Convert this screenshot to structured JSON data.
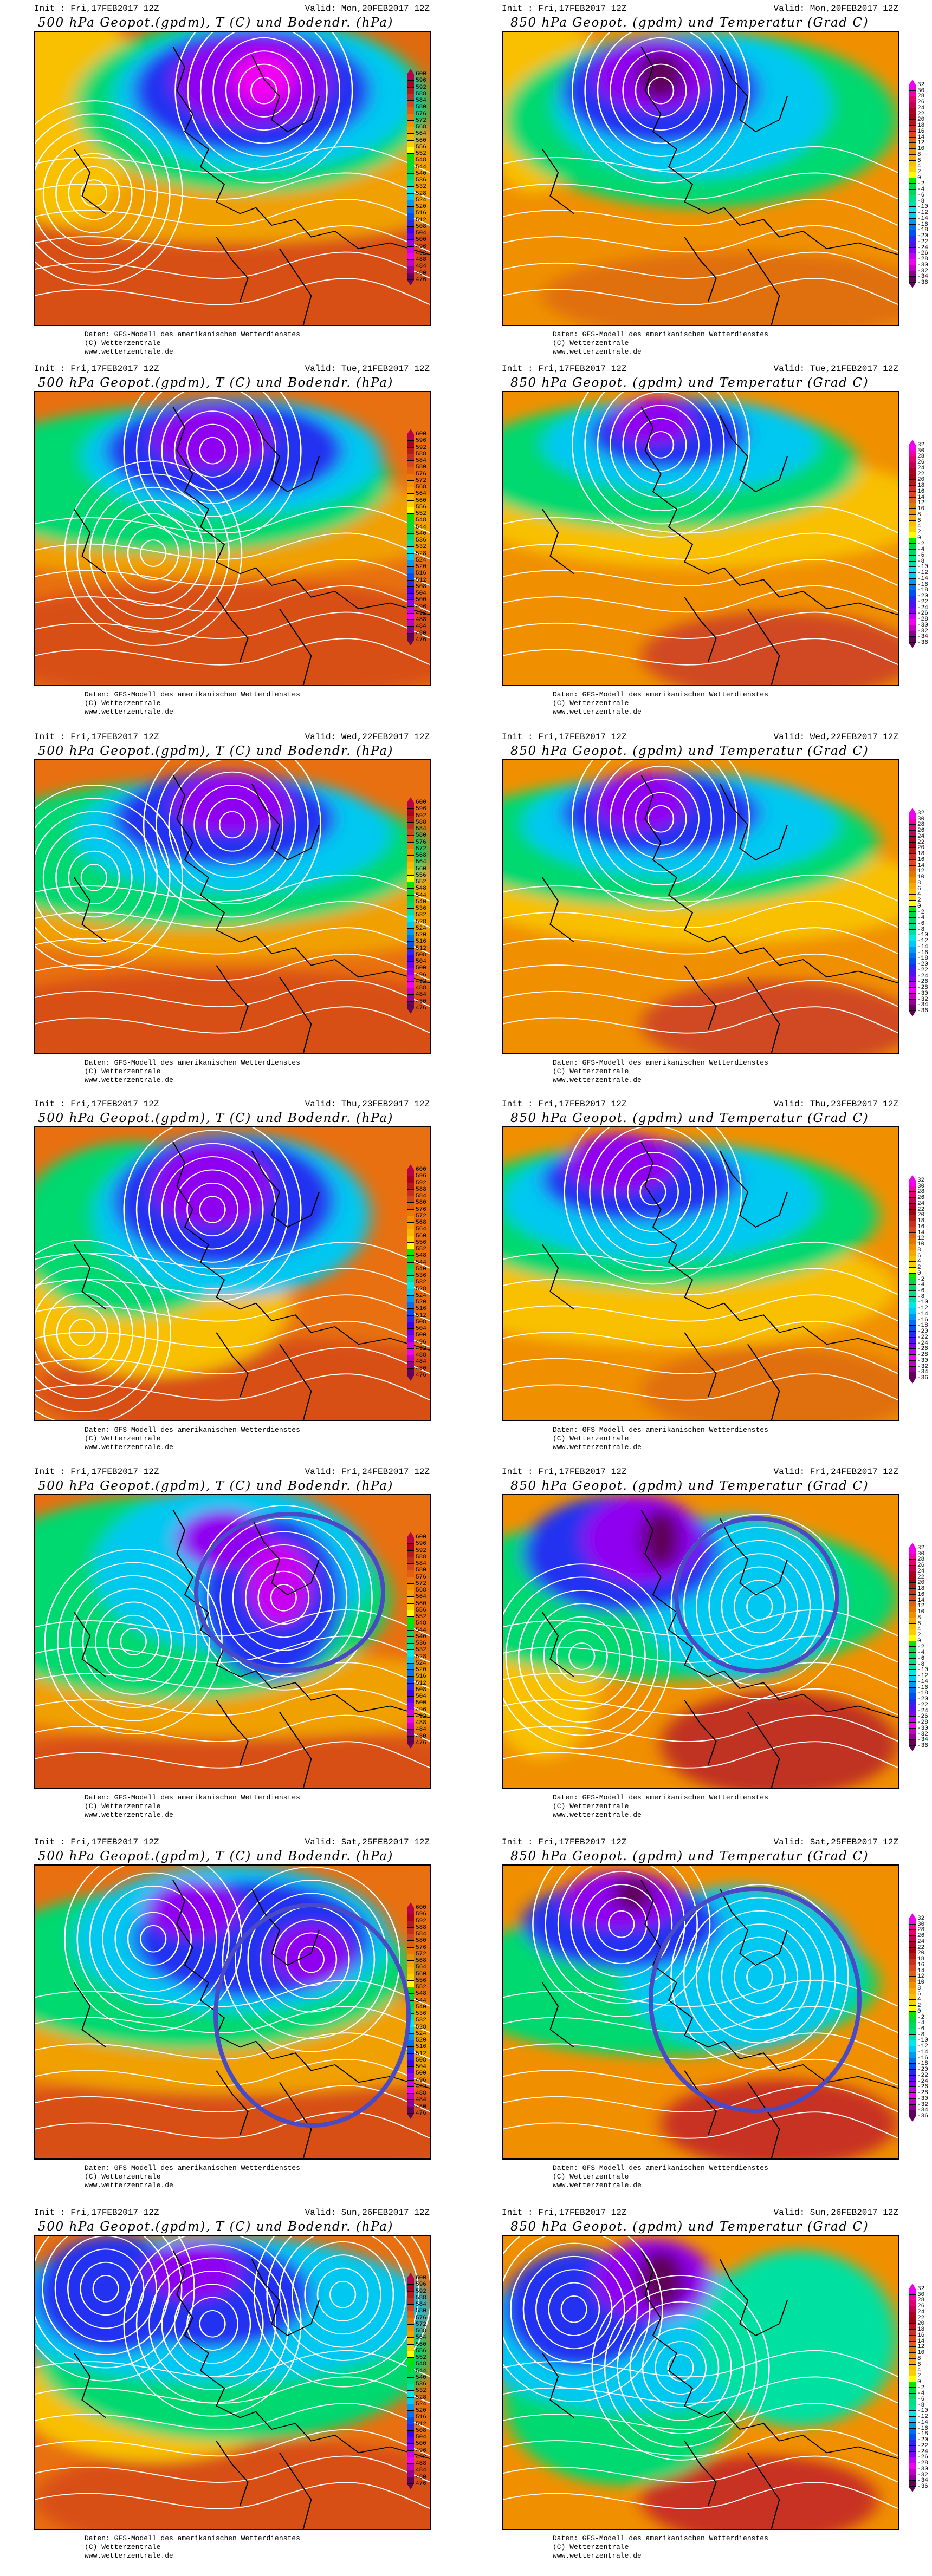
{
  "footer": [
    "Daten: GFS-Modell des amerikanischen Wetterdienstes",
    "(C) Wetterzentrale",
    "www.wetterzentrale.de"
  ],
  "titles": {
    "z500": "500 hPa Geopot.(gpdm), T (C) und Bodendr. (hPa)",
    "t850": "850 hPa Geopot. (gpdm) und Temperatur (Grad C)"
  },
  "init": "Init : Fri,17FEB2017 12Z",
  "rows": [
    {
      "valid": "Valid: Mon,20FEB2017 12Z",
      "highlighted": false
    },
    {
      "valid": "Valid: Tue,21FEB2017 12Z",
      "highlighted": false
    },
    {
      "valid": "Valid: Wed,22FEB2017 12Z",
      "highlighted": false
    },
    {
      "valid": "Valid: Thu,23FEB2017 12Z",
      "highlighted": false
    },
    {
      "valid": "Valid: Fri,24FEB2017 12Z",
      "highlighted": true
    },
    {
      "valid": "Valid: Sat,25FEB2017 12Z",
      "highlighted": true
    },
    {
      "valid": "Valid: Sun,26FEB2017 12Z",
      "highlighted": false
    }
  ],
  "colorbars": {
    "z500": {
      "labels": [
        "600",
        "596",
        "592",
        "588",
        "584",
        "580",
        "576",
        "572",
        "568",
        "564",
        "560",
        "556",
        "552",
        "548",
        "544",
        "540",
        "536",
        "532",
        "528",
        "524",
        "520",
        "516",
        "512",
        "508",
        "504",
        "500",
        "496",
        "492",
        "488",
        "484",
        "480",
        "476"
      ],
      "colors": [
        "#b8004a",
        "#a80020",
        "#b01c1c",
        "#c03020",
        "#d04820",
        "#e06010",
        "#e87808",
        "#f09000",
        "#f8a000",
        "#f8b800",
        "#f8d000",
        "#ffff00",
        "#00e800",
        "#00dc30",
        "#00d850",
        "#00dc78",
        "#00e0a0",
        "#00e8e8",
        "#00c8f8",
        "#0098f0",
        "#0070f0",
        "#0050f0",
        "#2828f0",
        "#3c00f0",
        "#6000f0",
        "#9000f0",
        "#c800f0",
        "#f000f0",
        "#c000c0",
        "#900090",
        "#600058"
      ]
    },
    "t850": {
      "labels": [
        "32",
        "30",
        "28",
        "26",
        "24",
        "22",
        "20",
        "18",
        "16",
        "14",
        "12",
        "10",
        "8",
        "6",
        "4",
        "2",
        "0",
        "-2",
        "-4",
        "-6",
        "-8",
        "-10",
        "-12",
        "-14",
        "-16",
        "-18",
        "-20",
        "-22",
        "-24",
        "-26",
        "-28",
        "-30",
        "-32",
        "-34",
        "-36"
      ],
      "colors": [
        "#f000f0",
        "#f000a0",
        "#e00070",
        "#c00050",
        "#a80020",
        "#a00010",
        "#b01818",
        "#c83020",
        "#d84820",
        "#e06010",
        "#e07800",
        "#f09000",
        "#f8a800",
        "#f8c000",
        "#f8d000",
        "#ffff00",
        "#00e800",
        "#00d840",
        "#00d860",
        "#00e080",
        "#00e0a0",
        "#00e8e8",
        "#00c8f8",
        "#0098f0",
        "#0070f0",
        "#0050f0",
        "#2828f0",
        "#5010f0",
        "#8000f0",
        "#c000f0",
        "#f000f0",
        "#c000c0",
        "#900090",
        "#600058"
      ]
    }
  },
  "annotation_color": "#4a4ac4"
}
